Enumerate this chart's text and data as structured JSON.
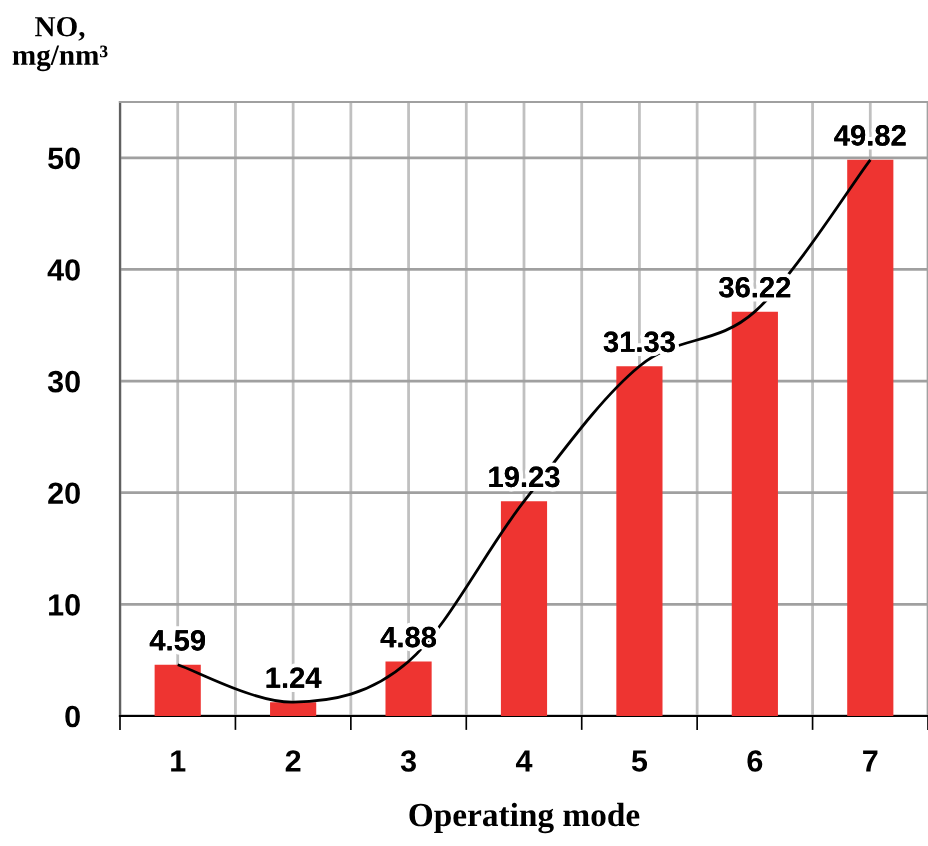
{
  "chart_data": {
    "type": "bar",
    "xlabel": "Operating mode",
    "ylabel": "NO,\nmg/nm³",
    "categories": [
      "1",
      "2",
      "3",
      "4",
      "5",
      "6",
      "7"
    ],
    "series": [
      {
        "type": "bar",
        "color": "#ee3431",
        "values": [
          4.59,
          1.24,
          4.88,
          19.23,
          31.33,
          36.22,
          49.82
        ],
        "value_labels": [
          "4.59",
          "1.24",
          "4.88",
          "19.23",
          "31.33",
          "36.22",
          "49.82"
        ]
      },
      {
        "type": "line",
        "color": "#000000",
        "values": [
          4.59,
          1.24,
          4.88,
          19.23,
          31.33,
          36.22,
          49.82
        ],
        "marker": "none",
        "line_style": "solid"
      }
    ],
    "ylim": [
      0,
      55
    ],
    "yticks": [
      0,
      10,
      20,
      30,
      40,
      50
    ],
    "grid": true
  }
}
